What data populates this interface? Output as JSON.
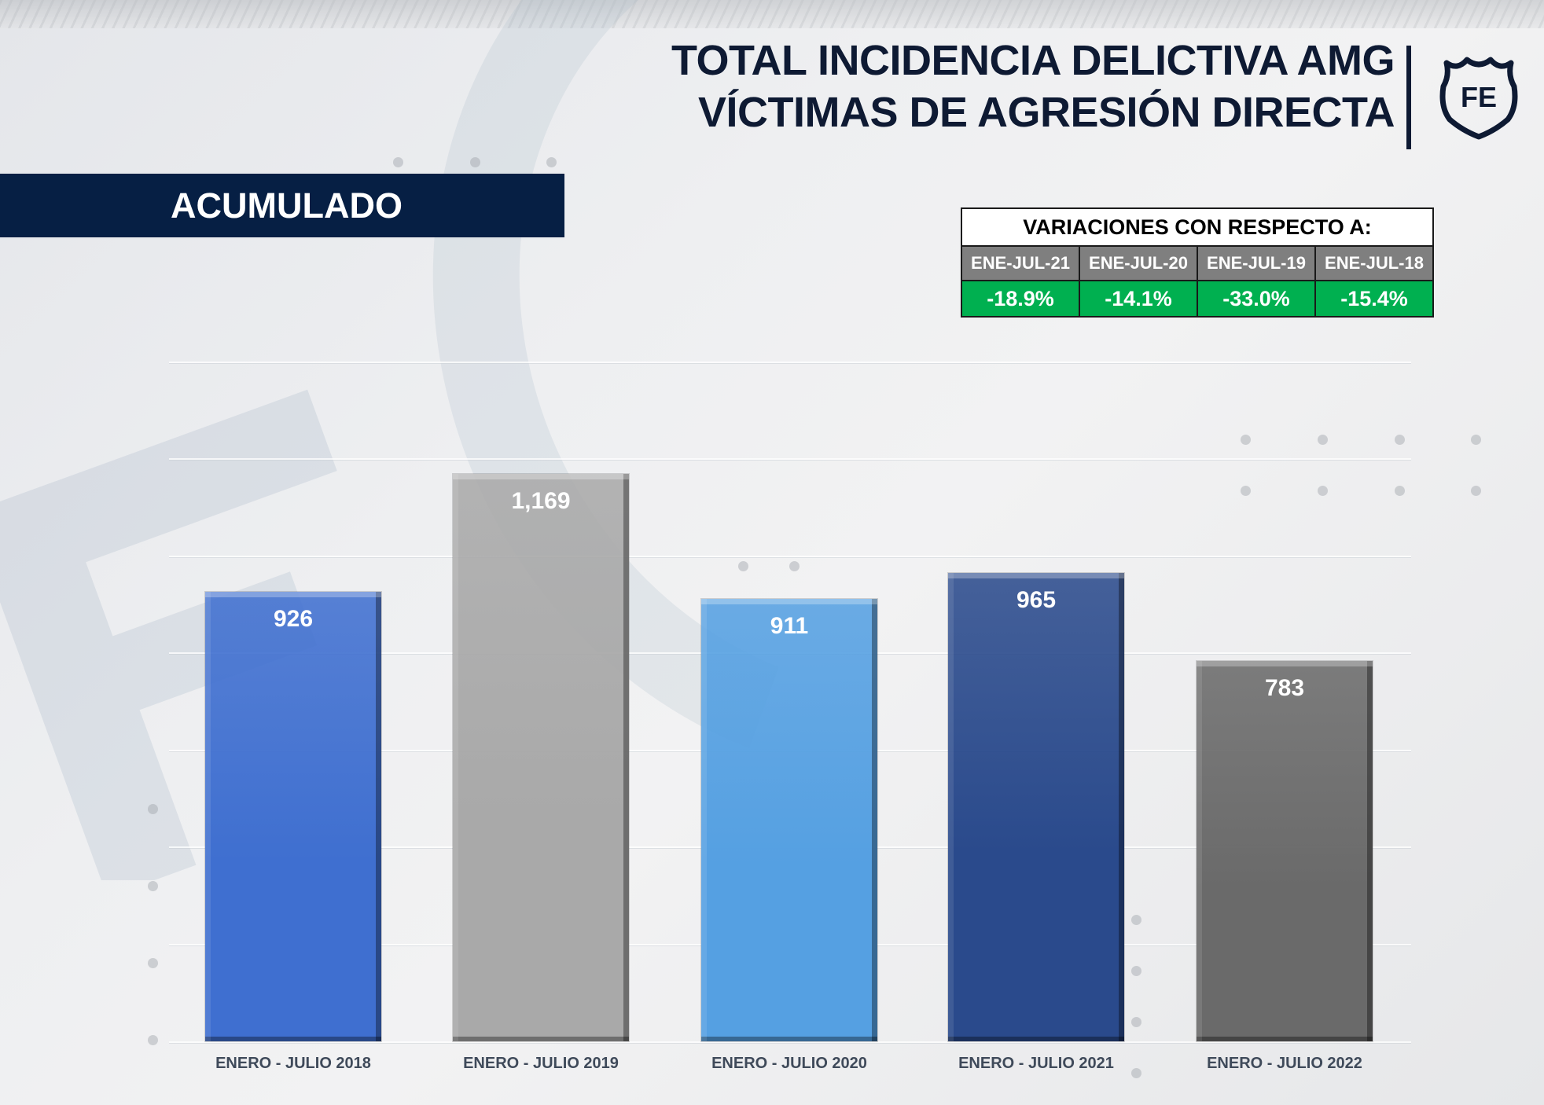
{
  "header": {
    "title_line1": "TOTAL INCIDENCIA DELICTIVA AMG",
    "title_line2": "VÍCTIMAS DE AGRESIÓN DIRECTA",
    "logo_text": "FE"
  },
  "banner": {
    "label": "ACUMULADO"
  },
  "variations": {
    "heading": "VARIACIONES CON RESPECTO A:",
    "columns": [
      "ENE-JUL-21",
      "ENE-JUL-20",
      "ENE-JUL-19",
      "ENE-JUL-18"
    ],
    "values": [
      "-18.9%",
      "-14.1%",
      "-33.0%",
      "-15.4%"
    ],
    "colors": {
      "header_bg": "#7f7f7f",
      "value_bg": "#00b050"
    }
  },
  "chart_data": {
    "type": "bar",
    "title": "TOTAL INCIDENCIA DELICTIVA AMG - VÍCTIMAS DE AGRESIÓN DIRECTA (ACUMULADO)",
    "categories": [
      "ENERO - JULIO 2018",
      "ENERO - JULIO 2019",
      "ENERO - JULIO 2020",
      "ENERO - JULIO 2021",
      "ENERO - JULIO 2022"
    ],
    "values": [
      926,
      1169,
      911,
      965,
      783
    ],
    "value_labels": [
      "926",
      "1,169",
      "911",
      "965",
      "783"
    ],
    "colors": [
      "#3f6fd0",
      "#a9a9a9",
      "#55a0e2",
      "#2a4a8c",
      "#6a6a6a"
    ],
    "xlabel": "",
    "ylabel": "",
    "ylim": [
      0,
      1400
    ],
    "grid": true,
    "legend": "none"
  }
}
